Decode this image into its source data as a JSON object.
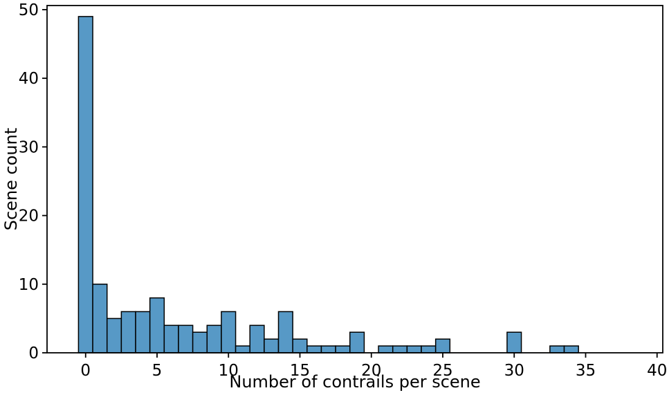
{
  "chart_data": {
    "type": "bar",
    "subtype": "histogram",
    "title": "",
    "xlabel": "Number of contrails per scene",
    "ylabel": "Scene count",
    "x": [
      0,
      1,
      2,
      3,
      4,
      5,
      6,
      7,
      8,
      9,
      10,
      11,
      12,
      13,
      14,
      15,
      16,
      17,
      18,
      19,
      20,
      21,
      22,
      23,
      24,
      25,
      26,
      27,
      28,
      29,
      30,
      31,
      32,
      33,
      34
    ],
    "values": [
      49,
      10,
      5,
      6,
      6,
      8,
      4,
      4,
      3,
      4,
      6,
      1,
      4,
      2,
      6,
      2,
      1,
      1,
      1,
      3,
      0,
      1,
      1,
      1,
      1,
      2,
      0,
      0,
      0,
      0,
      3,
      0,
      0,
      1,
      1
    ],
    "bin_width": 1,
    "xticks": [
      0,
      5,
      10,
      15,
      20,
      25,
      30,
      35,
      40
    ],
    "yticks": [
      0,
      10,
      20,
      30,
      40,
      50
    ],
    "xlim": [
      -2.7,
      40.4
    ],
    "ylim": [
      0,
      50.6
    ],
    "bar_color": "#5799C6",
    "bar_edge_color": "#000000",
    "spine_color": "#000000",
    "background": "#ffffff",
    "grid": false,
    "legend": null
  }
}
